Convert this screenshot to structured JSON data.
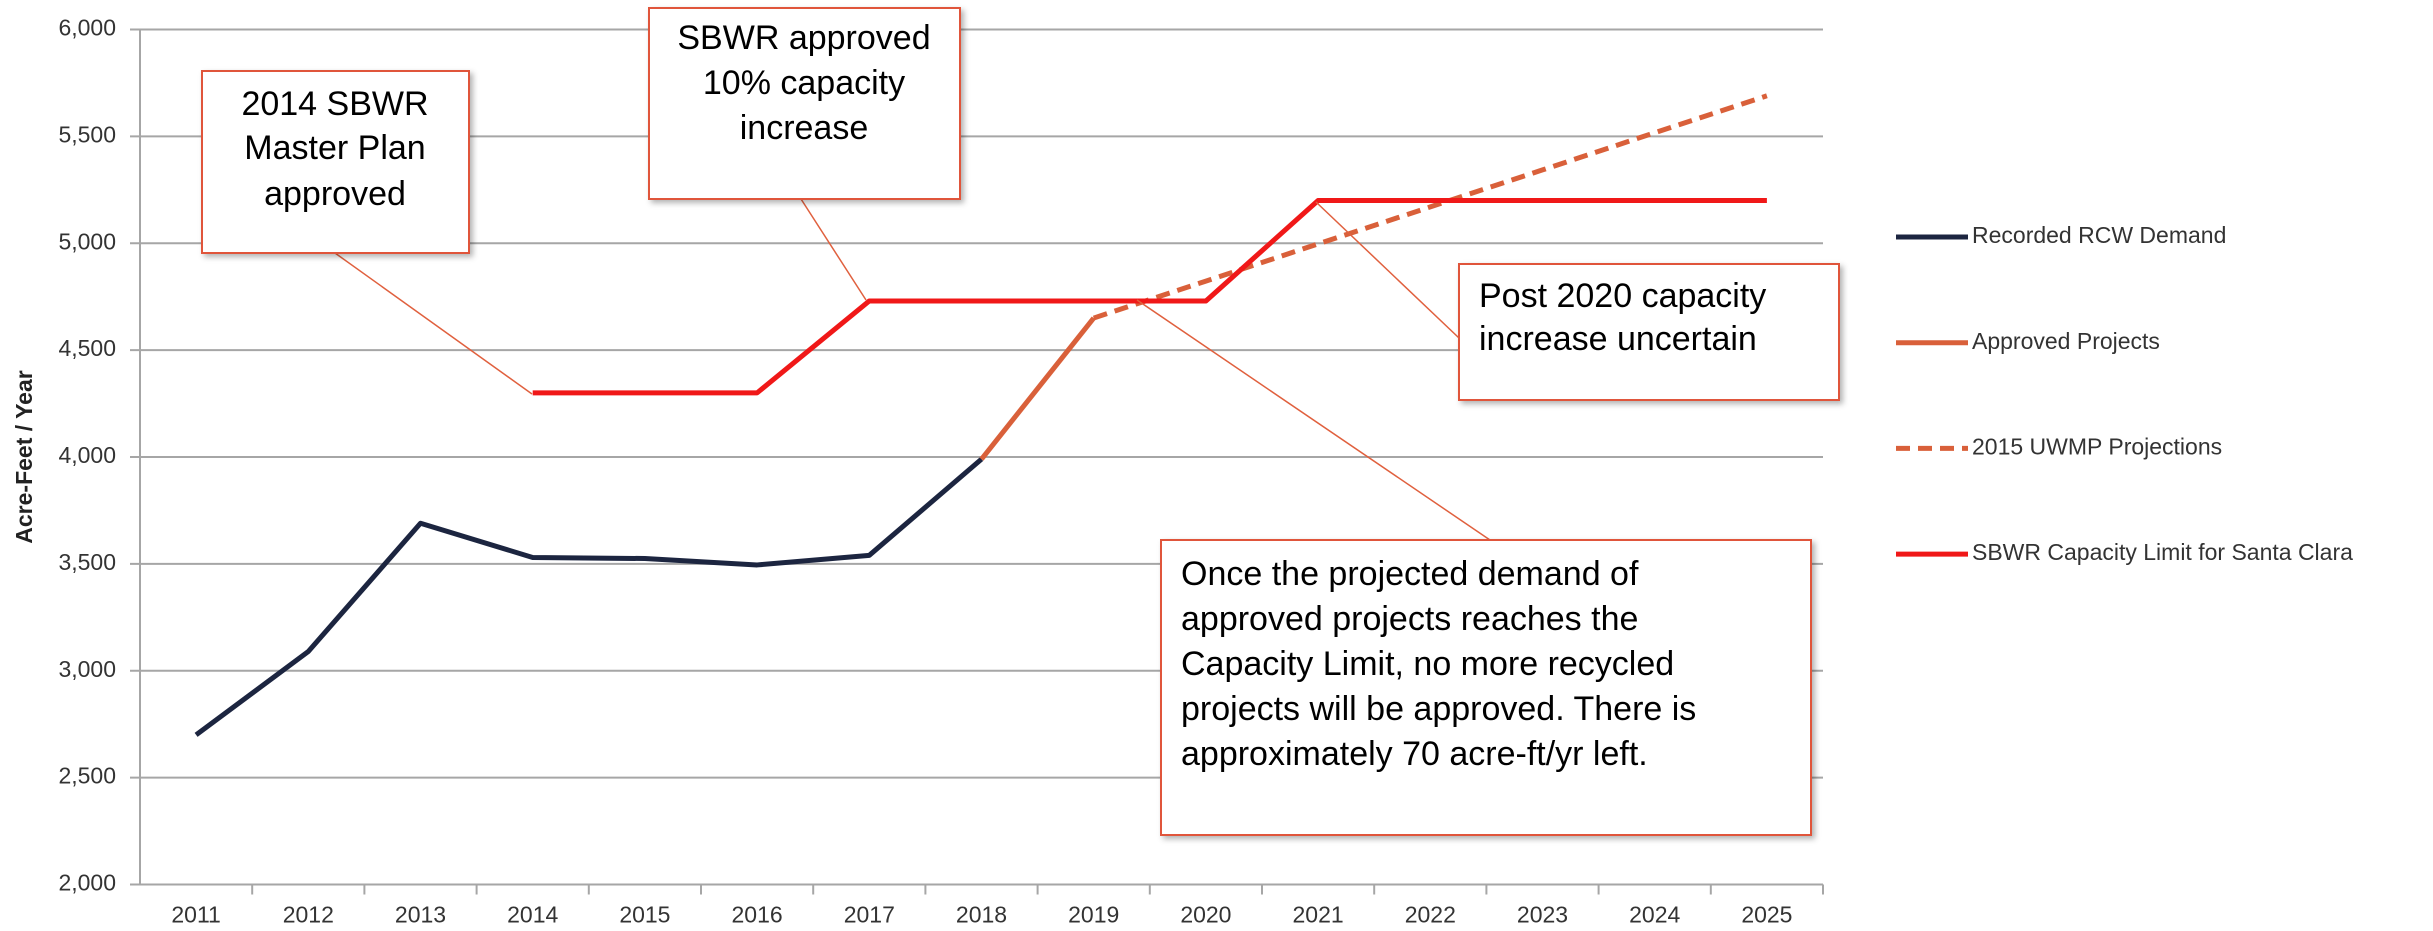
{
  "chart_data": {
    "type": "line",
    "y_label": "Acre-Feet / Year",
    "categories": [
      "2011",
      "2012",
      "2013",
      "2014",
      "2015",
      "2016",
      "2017",
      "2018",
      "2019",
      "2020",
      "2021",
      "2022",
      "2023",
      "2024",
      "2025"
    ],
    "series": [
      {
        "name": "Recorded RCW Demand",
        "color": "#1c2540",
        "dash": false,
        "values": [
          2700,
          3090,
          3690,
          3530,
          3525,
          3495,
          3540,
          3990,
          null,
          null,
          null,
          null,
          null,
          null,
          null
        ]
      },
      {
        "name": "Approved Projects",
        "color": "#d9603a",
        "dash": false,
        "values": [
          null,
          null,
          null,
          null,
          null,
          null,
          null,
          3990,
          4650,
          null,
          null,
          null,
          null,
          null,
          null
        ]
      },
      {
        "name": "2015 UWMP Projections",
        "color": "#d9603a",
        "dash": true,
        "values": [
          null,
          null,
          null,
          null,
          null,
          null,
          null,
          null,
          4650,
          4823,
          4997,
          5170,
          5343,
          5517,
          5690
        ]
      },
      {
        "name": "SBWR Capacity Limit for Santa Clara",
        "color": "#f01818",
        "dash": false,
        "values": [
          null,
          null,
          null,
          4300,
          4300,
          4300,
          4730,
          4730,
          4730,
          4730,
          5200,
          5200,
          5200,
          5200,
          5200
        ]
      }
    ],
    "ylim": [
      2000,
      6000
    ],
    "yticks": [
      {
        "value": 2000,
        "label": "2,000"
      },
      {
        "value": 2500,
        "label": "2,500"
      },
      {
        "value": 3000,
        "label": "3,000"
      },
      {
        "value": 3500,
        "label": "3,500"
      },
      {
        "value": 4000,
        "label": "4,000"
      },
      {
        "value": 4500,
        "label": "4,500"
      },
      {
        "value": 5000,
        "label": "5,000"
      },
      {
        "value": 5500,
        "label": "5,500"
      },
      {
        "value": 6000,
        "label": "6,000"
      }
    ],
    "grid": true,
    "legend": "right",
    "annotations": [
      {
        "lines": [
          "2014 SBWR",
          "Master Plan",
          "approved"
        ]
      },
      {
        "lines": [
          "SBWR approved",
          "10% capacity",
          "increase"
        ]
      },
      {
        "lines": [
          "Post 2020 capacity",
          "increase uncertain"
        ]
      },
      {
        "lines": [
          "Once the projected demand of",
          "approved projects reaches the",
          "Capacity Limit, no more recycled",
          "projects will be approved. There is",
          "approximately 70 acre-ft/yr left."
        ]
      }
    ]
  }
}
